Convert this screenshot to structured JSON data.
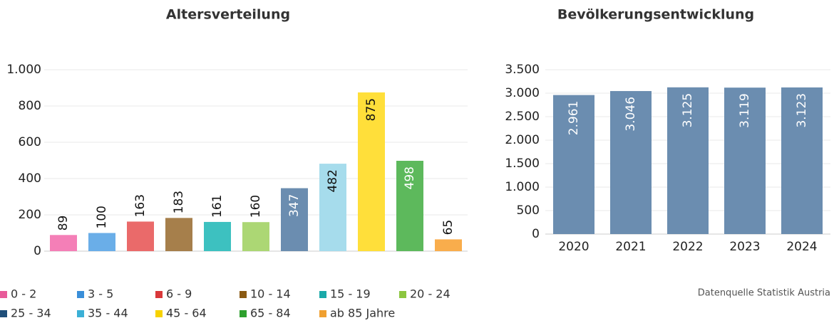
{
  "chart_data": [
    {
      "type": "bar",
      "title": "Altersverteilung",
      "categories": [
        "0 - 2",
        "3 - 5",
        "6 - 9",
        "10 - 14",
        "15 - 19",
        "20 - 24",
        "25 - 34",
        "35 - 44",
        "45 - 64",
        "65 - 84",
        "ab 85 Jahre"
      ],
      "values": [
        89,
        100,
        163,
        183,
        161,
        160,
        347,
        482,
        875,
        498,
        65
      ],
      "colors": [
        "#f47fb7",
        "#6aaee8",
        "#ea6a6a",
        "#a67f4b",
        "#3dc1c0",
        "#acd774",
        "#6b8db0",
        "#a6dcec",
        "#ffdf3a",
        "#5db95c",
        "#f9ad4c"
      ],
      "legend_colors": [
        "#e85b9a",
        "#3a8fd9",
        "#d9383a",
        "#8a5a13",
        "#1aa9a9",
        "#8cc63f",
        "#1f4e79",
        "#3bb0d6",
        "#f7d200",
        "#2ea02e",
        "#f0a030"
      ],
      "ylim": [
        0,
        1000
      ],
      "yticks": [
        0,
        200,
        400,
        600,
        800,
        {
          "value": 1000,
          "label": "1.000"
        }
      ],
      "grid": true
    },
    {
      "type": "bar",
      "title": "Bevölkerungsentwicklung",
      "categories": [
        "2020",
        "2021",
        "2022",
        "2023",
        "2024"
      ],
      "values": [
        2961,
        3046,
        3125,
        3119,
        3123
      ],
      "value_labels": [
        "2.961",
        "3.046",
        "3.125",
        "3.119",
        "3.123"
      ],
      "color": "#6b8db0",
      "ylim": [
        0,
        3500
      ],
      "yticks": [
        0,
        500,
        {
          "value": 1000,
          "label": "1.000"
        },
        {
          "value": 1500,
          "label": "1.500"
        },
        {
          "value": 2000,
          "label": "2.000"
        },
        {
          "value": 2500,
          "label": "2.500"
        },
        {
          "value": 3000,
          "label": "3.000"
        },
        {
          "value": 3500,
          "label": "3.500"
        }
      ],
      "grid": true
    }
  ],
  "source": "Datenquelle Statistik Austria"
}
